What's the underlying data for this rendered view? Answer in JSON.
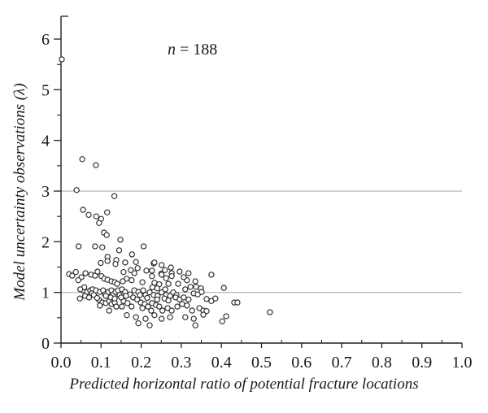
{
  "chart_data": {
    "type": "scatter",
    "title": "",
    "xlabel": "Predicted horizontal ratio of potential fracture locations",
    "ylabel": "Model uncertainty observations (λ)",
    "annotation": {
      "variable": "n",
      "rest": " = 188"
    },
    "xlim": [
      0,
      1.0
    ],
    "ylim": [
      0,
      6.45
    ],
    "x_ticks": [
      0,
      0.1,
      0.2,
      0.3,
      0.4,
      0.5,
      0.6,
      0.7,
      0.8,
      0.9,
      1.0
    ],
    "x_tick_labels": [
      "0.0",
      "0.1",
      "0.2",
      "0.3",
      "0.4",
      "0.5",
      "0.6",
      "0.7",
      "0.8",
      "0.9",
      "1.0"
    ],
    "x_minor_ticks": [
      0.05,
      0.15,
      0.25,
      0.35,
      0.45,
      0.55,
      0.65,
      0.75,
      0.85,
      0.95
    ],
    "y_ticks": [
      0,
      1,
      2,
      3,
      4,
      5,
      6
    ],
    "y_tick_labels": [
      "0",
      "1",
      "2",
      "3",
      "4",
      "5",
      "6"
    ],
    "y_minor_ticks": [
      0.5,
      1.5,
      2.5,
      3.5,
      4.5,
      5.5
    ],
    "gridlines_y": [
      1,
      3
    ],
    "legend": "none",
    "marker": "open-circle",
    "n_points": 188,
    "colors": {
      "axis": "#222222",
      "text": "#1a1a1a",
      "grid": "#b0b0b0",
      "marker_stroke": "#2b2b2b",
      "marker_fill": "#ffffff",
      "background": "#ffffff"
    },
    "points": [
      [
        0.002,
        5.6
      ],
      [
        0.053,
        3.63
      ],
      [
        0.087,
        3.51
      ],
      [
        0.039,
        3.02
      ],
      [
        0.133,
        2.9
      ],
      [
        0.055,
        2.63
      ],
      [
        0.069,
        2.53
      ],
      [
        0.088,
        2.5
      ],
      [
        0.115,
        2.58
      ],
      [
        0.1,
        2.45
      ],
      [
        0.095,
        2.37
      ],
      [
        0.107,
        2.18
      ],
      [
        0.114,
        2.13
      ],
      [
        0.044,
        1.91
      ],
      [
        0.085,
        1.91
      ],
      [
        0.103,
        1.89
      ],
      [
        0.148,
        2.04
      ],
      [
        0.145,
        1.83
      ],
      [
        0.177,
        1.75
      ],
      [
        0.206,
        1.91
      ],
      [
        0.116,
        1.7
      ],
      [
        0.138,
        1.64
      ],
      [
        0.231,
        1.57
      ],
      [
        0.227,
        1.43
      ],
      [
        0.25,
        1.37
      ],
      [
        0.259,
        1.44
      ],
      [
        0.276,
        1.38
      ],
      [
        0.375,
        1.35
      ],
      [
        0.099,
        1.58
      ],
      [
        0.116,
        1.62
      ],
      [
        0.136,
        1.56
      ],
      [
        0.16,
        1.59
      ],
      [
        0.187,
        1.6
      ],
      [
        0.233,
        1.59
      ],
      [
        0.251,
        1.54
      ],
      [
        0.274,
        1.49
      ],
      [
        0.037,
        1.4
      ],
      [
        0.02,
        1.36
      ],
      [
        0.028,
        1.33
      ],
      [
        0.051,
        1.3
      ],
      [
        0.043,
        1.24
      ],
      [
        0.061,
        1.38
      ],
      [
        0.075,
        1.35
      ],
      [
        0.085,
        1.33
      ],
      [
        0.091,
        1.41
      ],
      [
        0.101,
        1.32
      ],
      [
        0.108,
        1.27
      ],
      [
        0.116,
        1.25
      ],
      [
        0.126,
        1.22
      ],
      [
        0.134,
        1.2
      ],
      [
        0.14,
        1.17
      ],
      [
        0.174,
        1.44
      ],
      [
        0.191,
        1.48
      ],
      [
        0.156,
        1.4
      ],
      [
        0.183,
        1.38
      ],
      [
        0.213,
        1.43
      ],
      [
        0.227,
        1.32
      ],
      [
        0.251,
        1.35
      ],
      [
        0.262,
        1.28
      ],
      [
        0.276,
        1.32
      ],
      [
        0.164,
        1.27
      ],
      [
        0.176,
        1.24
      ],
      [
        0.154,
        1.22
      ],
      [
        0.203,
        1.2
      ],
      [
        0.233,
        1.19
      ],
      [
        0.245,
        1.16
      ],
      [
        0.268,
        1.17
      ],
      [
        0.055,
        1.04
      ],
      [
        0.065,
        1.01
      ],
      [
        0.073,
        1.04
      ],
      [
        0.079,
        1.06
      ],
      [
        0.077,
        0.98
      ],
      [
        0.087,
        1.04
      ],
      [
        0.097,
        1.01
      ],
      [
        0.105,
        1.04
      ],
      [
        0.11,
        0.96
      ],
      [
        0.118,
        1.01
      ],
      [
        0.126,
        1.04
      ],
      [
        0.13,
        0.96
      ],
      [
        0.136,
        1.01
      ],
      [
        0.142,
        1.04
      ],
      [
        0.152,
        1.06
      ],
      [
        0.16,
        1.01
      ],
      [
        0.172,
        0.96
      ],
      [
        0.183,
        1.04
      ],
      [
        0.193,
        1.01
      ],
      [
        0.205,
        1.04
      ],
      [
        0.197,
        0.95
      ],
      [
        0.211,
        0.95
      ],
      [
        0.221,
        1.0
      ],
      [
        0.231,
        0.95
      ],
      [
        0.241,
        0.93
      ],
      [
        0.251,
        1.0
      ],
      [
        0.262,
        0.95
      ],
      [
        0.272,
        0.93
      ],
      [
        0.28,
        1.0
      ],
      [
        0.288,
        0.95
      ],
      [
        0.047,
        0.88
      ],
      [
        0.095,
        0.85
      ],
      [
        0.103,
        0.8
      ],
      [
        0.097,
        0.74
      ],
      [
        0.112,
        0.79
      ],
      [
        0.12,
        0.83
      ],
      [
        0.126,
        0.77
      ],
      [
        0.134,
        0.8
      ],
      [
        0.138,
        0.72
      ],
      [
        0.12,
        0.64
      ],
      [
        0.156,
        0.83
      ],
      [
        0.166,
        0.79
      ],
      [
        0.152,
        0.72
      ],
      [
        0.176,
        0.72
      ],
      [
        0.199,
        0.8
      ],
      [
        0.209,
        0.77
      ],
      [
        0.203,
        0.69
      ],
      [
        0.217,
        0.72
      ],
      [
        0.227,
        0.79
      ],
      [
        0.237,
        0.75
      ],
      [
        0.245,
        0.72
      ],
      [
        0.225,
        0.64
      ],
      [
        0.253,
        0.64
      ],
      [
        0.266,
        0.69
      ],
      [
        0.276,
        0.64
      ],
      [
        0.164,
        0.55
      ],
      [
        0.187,
        0.51
      ],
      [
        0.211,
        0.48
      ],
      [
        0.233,
        0.55
      ],
      [
        0.251,
        0.48
      ],
      [
        0.272,
        0.51
      ],
      [
        0.193,
        0.39
      ],
      [
        0.221,
        0.35
      ],
      [
        0.292,
        1.17
      ],
      [
        0.314,
        1.24
      ],
      [
        0.335,
        1.22
      ],
      [
        0.31,
        1.06
      ],
      [
        0.323,
        1.11
      ],
      [
        0.337,
        1.11
      ],
      [
        0.349,
        1.08
      ],
      [
        0.331,
        0.98
      ],
      [
        0.341,
        0.96
      ],
      [
        0.351,
        1.01
      ],
      [
        0.363,
        0.87
      ],
      [
        0.375,
        0.83
      ],
      [
        0.385,
        0.88
      ],
      [
        0.406,
        1.09
      ],
      [
        0.432,
        0.8
      ],
      [
        0.44,
        0.8
      ],
      [
        0.29,
        0.72
      ],
      [
        0.302,
        0.77
      ],
      [
        0.314,
        0.74
      ],
      [
        0.327,
        0.64
      ],
      [
        0.345,
        0.69
      ],
      [
        0.355,
        0.64
      ],
      [
        0.363,
        0.63
      ],
      [
        0.31,
        0.51
      ],
      [
        0.331,
        0.48
      ],
      [
        0.355,
        0.56
      ],
      [
        0.402,
        0.43
      ],
      [
        0.412,
        0.53
      ],
      [
        0.521,
        0.61
      ],
      [
        0.335,
        0.35
      ],
      [
        0.296,
        1.41
      ],
      [
        0.306,
        1.3
      ],
      [
        0.318,
        1.38
      ],
      [
        0.06,
        0.93
      ],
      [
        0.07,
        0.9
      ],
      [
        0.082,
        0.95
      ],
      [
        0.09,
        0.89
      ],
      [
        0.146,
        0.95
      ],
      [
        0.15,
        0.9
      ],
      [
        0.162,
        0.93
      ],
      [
        0.18,
        0.9
      ],
      [
        0.19,
        0.86
      ],
      [
        0.215,
        0.89
      ],
      [
        0.24,
        0.86
      ],
      [
        0.258,
        0.88
      ],
      [
        0.268,
        0.84
      ],
      [
        0.286,
        0.9
      ],
      [
        0.296,
        0.86
      ],
      [
        0.306,
        0.9
      ],
      [
        0.318,
        0.86
      ],
      [
        0.112,
        0.93
      ],
      [
        0.124,
        0.9
      ],
      [
        0.134,
        0.88
      ],
      [
        0.058,
        1.1
      ],
      [
        0.048,
        1.06
      ],
      [
        0.228,
        1.1
      ],
      [
        0.24,
        1.08
      ],
      [
        0.26,
        1.06
      ]
    ]
  }
}
